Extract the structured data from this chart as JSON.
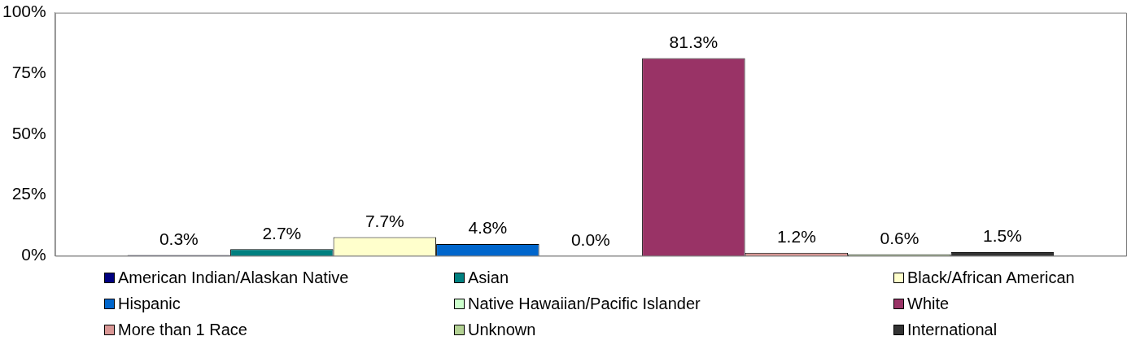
{
  "chart_data": {
    "type": "bar",
    "categories": [
      null
    ],
    "series": [
      {
        "name": "American Indian/Alaskan Native",
        "color": "#000080",
        "values": [
          0.3
        ],
        "value_labels": [
          "0.3%"
        ]
      },
      {
        "name": "Asian",
        "color": "#008080",
        "values": [
          2.7
        ],
        "value_labels": [
          "2.7%"
        ]
      },
      {
        "name": "Black/African American",
        "color": "#ffffcc",
        "values": [
          7.7
        ],
        "value_labels": [
          "7.7%"
        ]
      },
      {
        "name": "Hispanic",
        "color": "#0066cc",
        "values": [
          4.8
        ],
        "value_labels": [
          "4.8%"
        ]
      },
      {
        "name": "Native Hawaiian/Pacific Islander",
        "color": "#ccffcc",
        "values": [
          0.0
        ],
        "value_labels": [
          "0.0%"
        ]
      },
      {
        "name": "White",
        "color": "#993366",
        "values": [
          81.3
        ],
        "value_labels": [
          "81.3%"
        ]
      },
      {
        "name": "More than 1 Race",
        "color": "#d99795",
        "values": [
          1.2
        ],
        "value_labels": [
          "1.2%"
        ]
      },
      {
        "name": "Unknown",
        "color": "#b3d193",
        "values": [
          0.6
        ],
        "value_labels": [
          "0.6%"
        ]
      },
      {
        "name": "International",
        "color": "#333333",
        "values": [
          1.5
        ],
        "value_labels": [
          "1.5%"
        ]
      }
    ],
    "ylim": [
      0,
      100
    ],
    "yticks": [
      {
        "value": 0,
        "label": "0%"
      },
      {
        "value": 25,
        "label": "25%"
      },
      {
        "value": 50,
        "label": "50%"
      },
      {
        "value": 75,
        "label": "75%"
      },
      {
        "value": 100,
        "label": "100%"
      }
    ],
    "tick_labels": "y",
    "grid": false,
    "legend": "bottom"
  }
}
